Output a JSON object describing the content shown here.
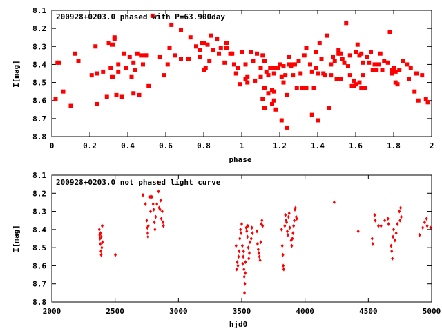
{
  "colors": {
    "points": "#ff0000",
    "axes": "#000000",
    "background": "#ffffff"
  },
  "chart_data": [
    {
      "type": "scatter",
      "title": "200928+0203.0 phased with P=63.900day",
      "xlabel": "phase",
      "ylabel": "I[mag]",
      "xlim": [
        0,
        2
      ],
      "ylim": [
        8.1,
        8.8
      ],
      "y_inverted": true,
      "marker": "filled-square",
      "grid": false,
      "xticks": [
        "0",
        "0.2",
        "0.4",
        "0.6",
        "0.8",
        "1",
        "1.2",
        "1.4",
        "1.6",
        "1.8",
        "2"
      ],
      "yticks": [
        "8.1",
        "8.2",
        "8.3",
        "8.4",
        "8.5",
        "8.6",
        "8.7",
        "8.8"
      ],
      "points": [
        [
          0.02,
          8.59
        ],
        [
          0.03,
          8.39
        ],
        [
          0.04,
          8.39
        ],
        [
          0.06,
          8.55
        ],
        [
          0.1,
          8.63
        ],
        [
          0.12,
          8.34
        ],
        [
          0.14,
          8.38
        ],
        [
          0.21,
          8.46
        ],
        [
          0.23,
          8.3
        ],
        [
          0.24,
          8.45
        ],
        [
          0.24,
          8.62
        ],
        [
          0.27,
          8.44
        ],
        [
          0.29,
          8.58
        ],
        [
          0.3,
          8.28
        ],
        [
          0.31,
          8.42
        ],
        [
          0.32,
          8.47
        ],
        [
          0.32,
          8.29
        ],
        [
          0.33,
          8.25
        ],
        [
          0.33,
          8.26
        ],
        [
          0.34,
          8.57
        ],
        [
          0.35,
          8.44
        ],
        [
          0.35,
          8.4
        ],
        [
          0.37,
          8.58
        ],
        [
          0.38,
          8.34
        ],
        [
          0.39,
          8.42
        ],
        [
          0.41,
          8.36
        ],
        [
          0.42,
          8.47
        ],
        [
          0.43,
          8.56
        ],
        [
          0.43,
          8.39
        ],
        [
          0.44,
          8.43
        ],
        [
          0.45,
          8.34
        ],
        [
          0.46,
          8.57
        ],
        [
          0.47,
          8.35
        ],
        [
          0.48,
          8.4
        ],
        [
          0.49,
          8.35
        ],
        [
          0.5,
          8.35
        ],
        [
          0.51,
          8.52
        ],
        [
          0.53,
          8.13
        ],
        [
          0.57,
          8.36
        ],
        [
          0.59,
          8.46
        ],
        [
          0.61,
          8.4
        ],
        [
          0.62,
          8.31
        ],
        [
          0.63,
          8.18
        ],
        [
          0.65,
          8.35
        ],
        [
          0.68,
          8.37
        ],
        [
          0.68,
          8.21
        ],
        [
          0.72,
          8.37
        ],
        [
          0.73,
          8.25
        ],
        [
          0.76,
          8.3
        ],
        [
          0.78,
          8.36
        ],
        [
          0.78,
          8.32
        ],
        [
          0.79,
          8.28
        ],
        [
          0.8,
          8.28
        ],
        [
          0.8,
          8.43
        ],
        [
          0.81,
          8.42
        ],
        [
          0.82,
          8.29
        ],
        [
          0.83,
          8.38
        ],
        [
          0.84,
          8.24
        ],
        [
          0.85,
          8.32
        ],
        [
          0.87,
          8.26
        ],
        [
          0.88,
          8.34
        ],
        [
          0.89,
          8.31
        ],
        [
          0.91,
          8.39
        ],
        [
          0.92,
          8.28
        ],
        [
          0.92,
          8.31
        ],
        [
          0.94,
          8.34
        ],
        [
          0.95,
          8.34
        ],
        [
          0.96,
          8.4
        ],
        [
          0.97,
          8.45
        ],
        [
          0.98,
          8.42
        ],
        [
          0.99,
          8.51
        ],
        [
          1.0,
          8.33
        ],
        [
          1.02,
          8.4
        ],
        [
          1.02,
          8.48
        ],
        [
          1.03,
          8.47
        ],
        [
          1.03,
          8.5
        ],
        [
          1.05,
          8.33
        ],
        [
          1.06,
          8.38
        ],
        [
          1.07,
          8.49
        ],
        [
          1.08,
          8.34
        ],
        [
          1.1,
          8.47
        ],
        [
          1.1,
          8.42
        ],
        [
          1.11,
          8.59
        ],
        [
          1.11,
          8.35
        ],
        [
          1.12,
          8.53
        ],
        [
          1.12,
          8.64
        ],
        [
          1.12,
          8.38
        ],
        [
          1.13,
          8.44
        ],
        [
          1.14,
          8.56
        ],
        [
          1.14,
          8.46
        ],
        [
          1.15,
          8.42
        ],
        [
          1.16,
          8.54
        ],
        [
          1.16,
          8.62
        ],
        [
          1.17,
          8.42
        ],
        [
          1.17,
          8.45
        ],
        [
          1.17,
          8.55
        ],
        [
          1.17,
          8.6
        ],
        [
          1.18,
          8.65
        ],
        [
          1.19,
          8.42
        ],
        [
          1.2,
          8.4
        ],
        [
          1.21,
          8.47
        ],
        [
          1.21,
          8.71
        ],
        [
          1.22,
          8.41
        ],
        [
          1.22,
          8.5
        ],
        [
          1.23,
          8.46
        ],
        [
          1.24,
          8.75
        ],
        [
          1.24,
          8.57
        ],
        [
          1.25,
          8.36
        ],
        [
          1.25,
          8.4
        ],
        [
          1.26,
          8.41
        ],
        [
          1.27,
          8.4
        ],
        [
          1.27,
          8.46
        ],
        [
          1.28,
          8.4
        ],
        [
          1.29,
          8.53
        ],
        [
          1.3,
          8.38
        ],
        [
          1.31,
          8.45
        ],
        [
          1.32,
          8.53
        ],
        [
          1.33,
          8.35
        ],
        [
          1.34,
          8.31
        ],
        [
          1.34,
          8.53
        ],
        [
          1.36,
          8.4
        ],
        [
          1.37,
          8.44
        ],
        [
          1.37,
          8.68
        ],
        [
          1.38,
          8.53
        ],
        [
          1.39,
          8.42
        ],
        [
          1.39,
          8.33
        ],
        [
          1.4,
          8.45
        ],
        [
          1.4,
          8.71
        ],
        [
          1.41,
          8.28
        ],
        [
          1.42,
          8.37
        ],
        [
          1.43,
          8.45
        ],
        [
          1.44,
          8.46
        ],
        [
          1.45,
          8.24
        ],
        [
          1.46,
          8.64
        ],
        [
          1.47,
          8.4
        ],
        [
          1.47,
          8.46
        ],
        [
          1.48,
          8.36
        ],
        [
          1.49,
          8.38
        ],
        [
          1.5,
          8.48
        ],
        [
          1.51,
          8.32
        ],
        [
          1.51,
          8.34
        ],
        [
          1.52,
          8.34
        ],
        [
          1.52,
          8.48
        ],
        [
          1.53,
          8.37
        ],
        [
          1.54,
          8.39
        ],
        [
          1.55,
          8.17
        ],
        [
          1.56,
          8.41
        ],
        [
          1.57,
          8.35
        ],
        [
          1.57,
          8.46
        ],
        [
          1.58,
          8.52
        ],
        [
          1.59,
          8.49
        ],
        [
          1.59,
          8.52
        ],
        [
          1.6,
          8.51
        ],
        [
          1.6,
          8.33
        ],
        [
          1.61,
          8.29
        ],
        [
          1.62,
          8.5
        ],
        [
          1.62,
          8.35
        ],
        [
          1.63,
          8.53
        ],
        [
          1.63,
          8.34
        ],
        [
          1.64,
          8.46
        ],
        [
          1.64,
          8.39
        ],
        [
          1.65,
          8.53
        ],
        [
          1.66,
          8.36
        ],
        [
          1.67,
          8.39
        ],
        [
          1.68,
          8.33
        ],
        [
          1.69,
          8.43
        ],
        [
          1.7,
          8.4
        ],
        [
          1.71,
          8.43
        ],
        [
          1.72,
          8.4
        ],
        [
          1.73,
          8.34
        ],
        [
          1.74,
          8.43
        ],
        [
          1.75,
          8.38
        ],
        [
          1.77,
          8.39
        ],
        [
          1.78,
          8.22
        ],
        [
          1.79,
          8.45
        ],
        [
          1.79,
          8.43
        ],
        [
          1.8,
          8.42
        ],
        [
          1.81,
          8.44
        ],
        [
          1.81,
          8.5
        ],
        [
          1.82,
          8.51
        ],
        [
          1.83,
          8.43
        ],
        [
          1.85,
          8.38
        ],
        [
          1.87,
          8.4
        ],
        [
          1.88,
          8.48
        ],
        [
          1.89,
          8.42
        ],
        [
          1.91,
          8.55
        ],
        [
          1.92,
          8.45
        ],
        [
          1.93,
          8.6
        ],
        [
          1.95,
          8.46
        ],
        [
          1.97,
          8.59
        ],
        [
          1.98,
          8.61
        ]
      ]
    },
    {
      "type": "scatter",
      "title": "200928+0203.0 not phased light curve",
      "xlabel": "hjd0",
      "ylabel": "I[mag]",
      "xlim": [
        2000,
        5000
      ],
      "ylim": [
        8.1,
        8.8
      ],
      "y_inverted": true,
      "marker": "small-diamond",
      "grid": false,
      "xticks": [
        "2000",
        "2500",
        "3000",
        "3500",
        "4000",
        "4500",
        "5000"
      ],
      "yticks": [
        "8.1",
        "8.2",
        "8.3",
        "8.4",
        "8.5",
        "8.6",
        "8.7",
        "8.8"
      ],
      "points": [
        [
          2375,
          8.4
        ],
        [
          2378,
          8.43
        ],
        [
          2380,
          8.45
        ],
        [
          2383,
          8.48
        ],
        [
          2385,
          8.42
        ],
        [
          2388,
          8.52
        ],
        [
          2390,
          8.54
        ],
        [
          2392,
          8.44
        ],
        [
          2395,
          8.5
        ],
        [
          2398,
          8.38
        ],
        [
          2400,
          8.47
        ],
        [
          2502,
          8.54
        ],
        [
          2720,
          8.21
        ],
        [
          2740,
          8.26
        ],
        [
          2750,
          8.35
        ],
        [
          2755,
          8.39
        ],
        [
          2758,
          8.42
        ],
        [
          2760,
          8.44
        ],
        [
          2762,
          8.38
        ],
        [
          2775,
          8.22
        ],
        [
          2780,
          8.3
        ],
        [
          2790,
          8.22
        ],
        [
          2800,
          8.26
        ],
        [
          2805,
          8.29
        ],
        [
          2810,
          8.36
        ],
        [
          2815,
          8.4
        ],
        [
          2820,
          8.33
        ],
        [
          2830,
          8.26
        ],
        [
          2838,
          8.14
        ],
        [
          2843,
          8.19
        ],
        [
          2848,
          8.28
        ],
        [
          2855,
          8.29
        ],
        [
          2860,
          8.24
        ],
        [
          2865,
          8.34
        ],
        [
          2872,
          8.3
        ],
        [
          2878,
          8.36
        ],
        [
          2882,
          8.38
        ],
        [
          3455,
          8.49
        ],
        [
          3460,
          8.62
        ],
        [
          3465,
          8.58
        ],
        [
          3470,
          8.6
        ],
        [
          3475,
          8.55
        ],
        [
          3480,
          8.52
        ],
        [
          3485,
          8.45
        ],
        [
          3490,
          8.4
        ],
        [
          3495,
          8.42
        ],
        [
          3500,
          8.37
        ],
        [
          3505,
          8.49
        ],
        [
          3508,
          8.59
        ],
        [
          3512,
          8.55
        ],
        [
          3515,
          8.52
        ],
        [
          3518,
          8.62
        ],
        [
          3520,
          8.66
        ],
        [
          3522,
          8.75
        ],
        [
          3525,
          8.7
        ],
        [
          3528,
          8.64
        ],
        [
          3530,
          8.58
        ],
        [
          3535,
          8.39
        ],
        [
          3540,
          8.41
        ],
        [
          3545,
          8.44
        ],
        [
          3548,
          8.38
        ],
        [
          3552,
          8.5
        ],
        [
          3556,
          8.56
        ],
        [
          3560,
          8.53
        ],
        [
          3565,
          8.47
        ],
        [
          3575,
          8.45
        ],
        [
          3580,
          8.39
        ],
        [
          3585,
          8.42
        ],
        [
          3620,
          8.41
        ],
        [
          3625,
          8.48
        ],
        [
          3630,
          8.51
        ],
        [
          3635,
          8.53
        ],
        [
          3640,
          8.55
        ],
        [
          3645,
          8.57
        ],
        [
          3650,
          8.47
        ],
        [
          3655,
          8.37
        ],
        [
          3660,
          8.35
        ],
        [
          3665,
          8.38
        ],
        [
          3815,
          8.4
        ],
        [
          3820,
          8.49
        ],
        [
          3825,
          8.54
        ],
        [
          3828,
          8.6
        ],
        [
          3832,
          8.62
        ],
        [
          3840,
          8.38
        ],
        [
          3845,
          8.32
        ],
        [
          3850,
          8.35
        ],
        [
          3855,
          8.36
        ],
        [
          3860,
          8.41
        ],
        [
          3865,
          8.43
        ],
        [
          3870,
          8.33
        ],
        [
          3875,
          8.31
        ],
        [
          3880,
          8.39
        ],
        [
          3890,
          8.46
        ],
        [
          3895,
          8.49
        ],
        [
          3900,
          8.45
        ],
        [
          3905,
          8.42
        ],
        [
          3910,
          8.38
        ],
        [
          3915,
          8.35
        ],
        [
          3920,
          8.29
        ],
        [
          3925,
          8.28
        ],
        [
          3930,
          8.33
        ],
        [
          3935,
          8.34
        ],
        [
          4230,
          8.25
        ],
        [
          4420,
          8.41
        ],
        [
          4530,
          8.45
        ],
        [
          4535,
          8.48
        ],
        [
          4550,
          8.32
        ],
        [
          4555,
          8.35
        ],
        [
          4580,
          8.38
        ],
        [
          4600,
          8.38
        ],
        [
          4630,
          8.35
        ],
        [
          4655,
          8.34
        ],
        [
          4660,
          8.37
        ],
        [
          4680,
          8.49
        ],
        [
          4685,
          8.52
        ],
        [
          4690,
          8.56
        ],
        [
          4695,
          8.44
        ],
        [
          4700,
          8.4
        ],
        [
          4710,
          8.46
        ],
        [
          4720,
          8.42
        ],
        [
          4730,
          8.37
        ],
        [
          4745,
          8.3
        ],
        [
          4750,
          8.35
        ],
        [
          4755,
          8.28
        ],
        [
          4760,
          8.33
        ],
        [
          4905,
          8.43
        ],
        [
          4930,
          8.39
        ],
        [
          4945,
          8.36
        ],
        [
          4960,
          8.34
        ],
        [
          4965,
          8.38
        ],
        [
          4990,
          8.39
        ]
      ]
    }
  ]
}
